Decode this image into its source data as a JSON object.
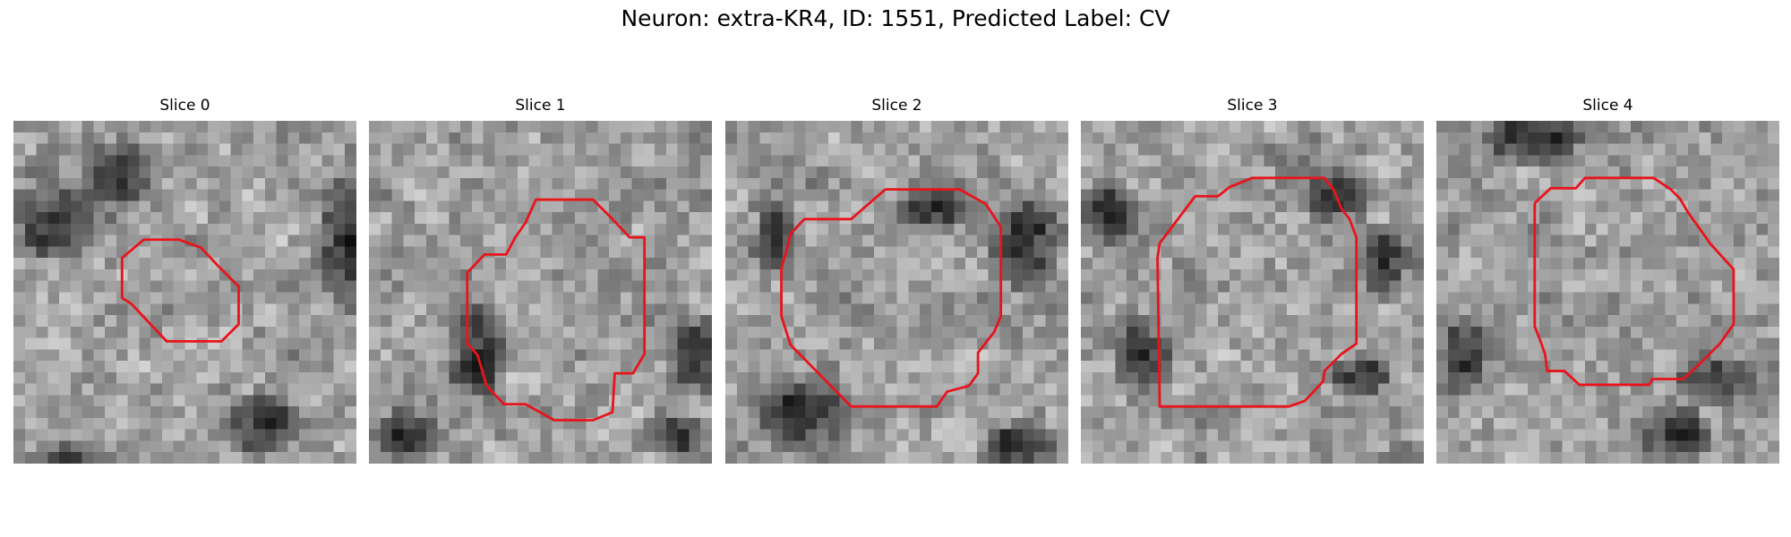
{
  "figure": {
    "title": "Neuron: extra-KR4, ID: 1551, Predicted Label: CV"
  },
  "panels": [
    {
      "title": "Slice 0",
      "seed": 11,
      "dark": [
        [
          3.5,
          8.5,
          4,
          3
        ],
        [
          8.5,
          4,
          3,
          2.5
        ],
        [
          29.5,
          10,
          3,
          6
        ],
        [
          21,
          26,
          3,
          2.5
        ],
        [
          5,
          30,
          3,
          2
        ]
      ],
      "contour_color": "#e8141c"
    },
    {
      "title": "Slice 1",
      "seed": 23,
      "dark": [
        [
          9,
          20,
          2.5,
          4
        ],
        [
          26,
          27,
          3,
          2
        ],
        [
          3,
          27,
          2.5,
          2
        ],
        [
          28,
          20,
          2.5,
          3
        ]
      ],
      "contour_color": "#e8141c"
    },
    {
      "title": "Slice 2",
      "seed": 37,
      "dark": [
        [
          6,
          25,
          4,
          3
        ],
        [
          18,
          7,
          3,
          2
        ],
        [
          26,
          10,
          3,
          4
        ],
        [
          25,
          28,
          3,
          2
        ],
        [
          4,
          10,
          2,
          3
        ]
      ],
      "contour_color": "#e8141c"
    },
    {
      "title": "Slice 3",
      "seed": 41,
      "dark": [
        [
          2,
          8,
          2,
          3
        ],
        [
          22,
          6,
          3,
          2
        ],
        [
          5,
          20,
          2.5,
          3
        ],
        [
          24,
          22,
          2.5,
          2
        ],
        [
          26,
          12,
          2,
          3
        ]
      ],
      "contour_color": "#e8141c"
    },
    {
      "title": "Slice 4",
      "seed": 53,
      "dark": [
        [
          8,
          1,
          4,
          2
        ],
        [
          24,
          22,
          3,
          2
        ],
        [
          20,
          27,
          3,
          2.5
        ],
        [
          2,
          20,
          2,
          3
        ]
      ],
      "contour_color": "#e8141c"
    }
  ]
}
